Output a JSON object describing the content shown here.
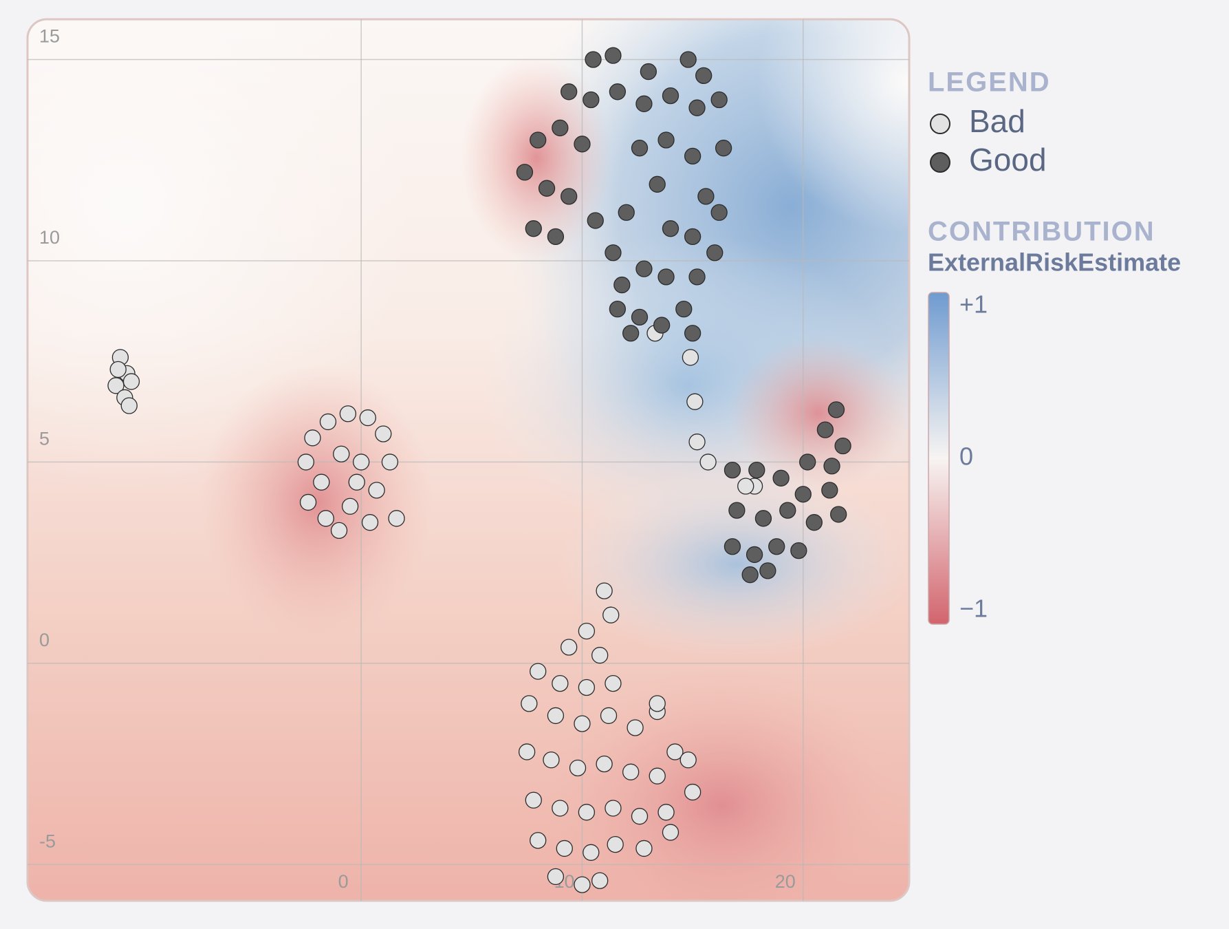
{
  "chart_data": {
    "type": "scatter",
    "xlim": [
      -15.1,
      24.8
    ],
    "ylim": [
      -5.9,
      16.0
    ],
    "xticks": [
      0,
      10,
      20
    ],
    "yticks": [
      -5,
      0,
      5,
      10,
      15
    ],
    "grid": true,
    "legend_title": "LEGEND",
    "series": [
      {
        "name": "Bad",
        "color": "#e2e2e2",
        "x": [
          -10.9,
          -10.6,
          -11.1,
          -10.7,
          -10.4,
          -11.0,
          -10.5,
          -2.5,
          -2.2,
          -1.5,
          -0.6,
          0.3,
          1.0,
          1.3,
          -1.8,
          -0.9,
          0.0,
          0.7,
          -2.4,
          -1.6,
          -0.5,
          0.4,
          -1.0,
          1.6,
          -0.2,
          11.0,
          11.3,
          10.2,
          9.4,
          10.8,
          8.0,
          9.0,
          10.2,
          11.4,
          7.6,
          8.8,
          10.0,
          11.2,
          12.4,
          13.4,
          14.2,
          7.5,
          8.6,
          9.8,
          11.0,
          12.2,
          13.4,
          14.8,
          15.0,
          7.8,
          9.0,
          10.2,
          11.4,
          12.6,
          13.8,
          8.0,
          9.2,
          10.4,
          11.5,
          12.8,
          14.0,
          8.8,
          10.0,
          10.8,
          13.4,
          13.3,
          14.9,
          15.1,
          15.2,
          15.7,
          17.8,
          17.4
        ],
        "values": [
          7.6,
          7.2,
          6.9,
          6.6,
          7.0,
          7.3,
          6.4,
          5.0,
          5.6,
          6.0,
          6.2,
          6.1,
          5.7,
          5.0,
          4.5,
          5.2,
          5.0,
          4.3,
          4.0,
          3.6,
          3.9,
          3.5,
          3.3,
          3.6,
          4.5,
          1.8,
          1.2,
          0.8,
          0.4,
          0.2,
          -0.2,
          -0.5,
          -0.6,
          -0.5,
          -1.0,
          -1.3,
          -1.5,
          -1.3,
          -1.6,
          -1.2,
          -2.2,
          -2.2,
          -2.4,
          -2.6,
          -2.5,
          -2.7,
          -2.8,
          -2.4,
          -3.2,
          -3.4,
          -3.6,
          -3.7,
          -3.6,
          -3.8,
          -3.7,
          -4.4,
          -4.6,
          -4.7,
          -4.5,
          -4.6,
          -4.2,
          -5.3,
          -5.5,
          -5.4,
          -1.0,
          8.2,
          7.6,
          6.5,
          5.5,
          5.0,
          4.4,
          4.4
        ]
      },
      {
        "name": "Good",
        "color": "#5e5e5e",
        "x": [
          10.5,
          11.4,
          13.0,
          14.8,
          15.5,
          9.4,
          10.4,
          11.6,
          12.8,
          14.0,
          15.2,
          16.2,
          8.0,
          9.0,
          10.0,
          12.6,
          13.8,
          15.0,
          16.4,
          7.4,
          8.4,
          9.4,
          12.0,
          13.4,
          15.6,
          16.2,
          7.8,
          8.8,
          10.6,
          11.4,
          14.0,
          15.0,
          16.0,
          11.8,
          12.8,
          13.8,
          15.2,
          11.6,
          12.6,
          13.6,
          14.6,
          15.0,
          12.2,
          21.5,
          21.0,
          21.8,
          20.2,
          21.3,
          16.8,
          17.9,
          19.0,
          20.0,
          21.2,
          17.0,
          18.2,
          19.3,
          20.5,
          21.6,
          16.8,
          17.8,
          18.8,
          19.8,
          17.6,
          18.4
        ],
        "values": [
          15.0,
          15.1,
          14.7,
          15.0,
          14.6,
          14.2,
          14.0,
          14.2,
          13.9,
          14.1,
          13.8,
          14.0,
          13.0,
          13.3,
          12.9,
          12.8,
          13.0,
          12.6,
          12.8,
          12.2,
          11.8,
          11.6,
          11.2,
          11.9,
          11.6,
          11.2,
          10.8,
          10.6,
          11.0,
          10.2,
          10.8,
          10.6,
          10.2,
          9.4,
          9.8,
          9.6,
          9.6,
          8.8,
          8.6,
          8.4,
          8.8,
          8.2,
          8.2,
          6.3,
          5.8,
          5.4,
          5.0,
          4.9,
          4.8,
          4.8,
          4.6,
          4.2,
          4.3,
          3.8,
          3.6,
          3.8,
          3.5,
          3.7,
          2.9,
          2.7,
          2.9,
          2.8,
          2.2,
          2.3
        ]
      }
    ],
    "colorbar": {
      "title": "CONTRIBUTION",
      "label": "ExternalRiskEstimate",
      "lim": [
        -1,
        1
      ],
      "ticks": [
        {
          "value": 1,
          "label": "+1"
        },
        0,
        {
          "value": -1,
          "label": "−1"
        }
      ]
    }
  }
}
